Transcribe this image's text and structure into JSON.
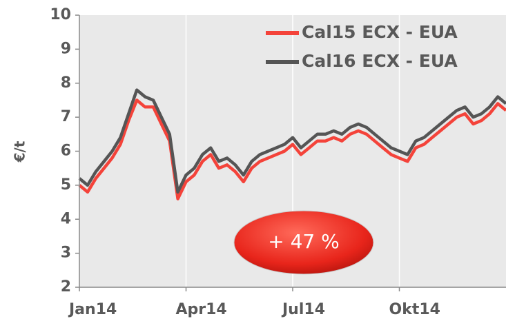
{
  "chart_data": {
    "type": "line",
    "y_label": "€/t",
    "annotation": "+ 47 %",
    "categories": [
      "Jan14",
      null,
      null,
      null,
      null,
      null,
      null,
      null,
      null,
      null,
      null,
      null,
      null,
      "Apr14",
      null,
      null,
      null,
      null,
      null,
      null,
      null,
      null,
      null,
      null,
      null,
      null,
      "Jul14",
      null,
      null,
      null,
      null,
      null,
      null,
      null,
      null,
      null,
      null,
      null,
      null,
      "Okt14",
      null,
      null,
      null,
      null,
      null,
      null,
      null,
      null,
      null,
      null,
      null,
      null,
      null
    ],
    "series": [
      {
        "name": "Cal15 ECX - EUA",
        "color": "#f4433a",
        "values": [
          5.0,
          4.8,
          5.2,
          5.5,
          5.8,
          6.2,
          6.9,
          7.5,
          7.3,
          7.3,
          6.8,
          6.3,
          4.6,
          5.1,
          5.3,
          5.7,
          5.9,
          5.5,
          5.6,
          5.4,
          5.1,
          5.5,
          5.7,
          5.8,
          5.9,
          6.0,
          6.2,
          5.9,
          6.1,
          6.3,
          6.3,
          6.4,
          6.3,
          6.5,
          6.6,
          6.5,
          6.3,
          6.1,
          5.9,
          5.8,
          5.7,
          6.1,
          6.2,
          6.4,
          6.6,
          6.8,
          7.0,
          7.1,
          6.8,
          6.9,
          7.1,
          7.4,
          7.2
        ]
      },
      {
        "name": "Cal16 ECX - EUA",
        "color": "#555555",
        "values": [
          5.2,
          5.0,
          5.4,
          5.7,
          6.0,
          6.4,
          7.1,
          7.8,
          7.6,
          7.5,
          7.0,
          6.5,
          4.8,
          5.3,
          5.5,
          5.9,
          6.1,
          5.7,
          5.8,
          5.6,
          5.3,
          5.7,
          5.9,
          6.0,
          6.1,
          6.2,
          6.4,
          6.1,
          6.3,
          6.5,
          6.5,
          6.6,
          6.5,
          6.7,
          6.8,
          6.7,
          6.5,
          6.3,
          6.1,
          6.0,
          5.9,
          6.3,
          6.4,
          6.6,
          6.8,
          7.0,
          7.2,
          7.3,
          7.0,
          7.1,
          7.3,
          7.6,
          7.4
        ]
      }
    ],
    "ylim": [
      2,
      10
    ],
    "yticks": [
      2,
      3,
      4,
      5,
      6,
      7,
      8,
      9,
      10
    ],
    "xgrid": true,
    "legend": "top-right"
  }
}
